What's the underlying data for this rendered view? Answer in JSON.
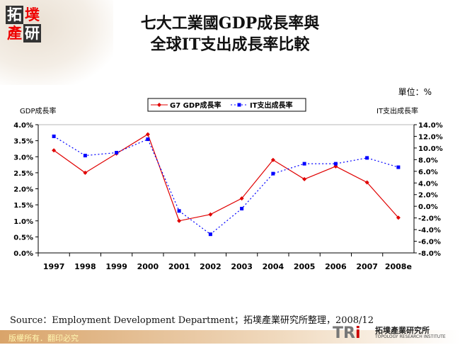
{
  "header": {
    "logo_chars": [
      "拓",
      "墣",
      "產",
      "研"
    ],
    "title_line1": "七大工業國GDP成長率與",
    "title_line2": "全球IT支出成長率比較",
    "unit": "單位：%"
  },
  "chart_data": {
    "type": "line",
    "categories": [
      "1997",
      "1998",
      "1999",
      "2000",
      "2001",
      "2002",
      "2003",
      "2004",
      "2005",
      "2006",
      "2007",
      "2008e"
    ],
    "ylabel": "GDP成長率",
    "y2label": "IT支出成長率",
    "ylim": [
      0,
      4.0
    ],
    "y2lim": [
      -8.0,
      14.0
    ],
    "yticks": [
      "0.0%",
      "0.5%",
      "1.0%",
      "1.5%",
      "2.0%",
      "2.5%",
      "3.0%",
      "3.5%",
      "4.0%"
    ],
    "y2ticks": [
      "-8.0%",
      "-6.0%",
      "-4.0%",
      "-2.0%",
      "0.0%",
      "2.0%",
      "4.0%",
      "6.0%",
      "8.0%",
      "10.0%",
      "12.0%",
      "14.0%"
    ],
    "legend_position": "top",
    "grid": false,
    "series": [
      {
        "name": "G7 GDP成長率",
        "axis": "left",
        "color": "#e00000",
        "style": "solid",
        "marker": "diamond",
        "values": [
          3.2,
          2.5,
          3.1,
          3.7,
          1.0,
          1.2,
          1.7,
          2.9,
          2.3,
          2.7,
          2.2,
          1.1
        ]
      },
      {
        "name": "IT支出成長率",
        "axis": "right",
        "color": "#0000ff",
        "style": "dotted",
        "marker": "square",
        "values": [
          12.0,
          8.7,
          9.2,
          11.5,
          -0.8,
          -4.8,
          -0.4,
          5.6,
          7.3,
          7.3,
          8.3,
          6.7
        ]
      }
    ]
  },
  "footer": {
    "source": "Source：Employment Development Department；拓墣產業研究所整理，2008/12",
    "copyright": "版權所有．翻印必究",
    "brand_logo": "TRi",
    "brand_name": "拓墣產業研究所",
    "brand_en": "TOPOLOGY RESEARCH INSTITUTE"
  }
}
